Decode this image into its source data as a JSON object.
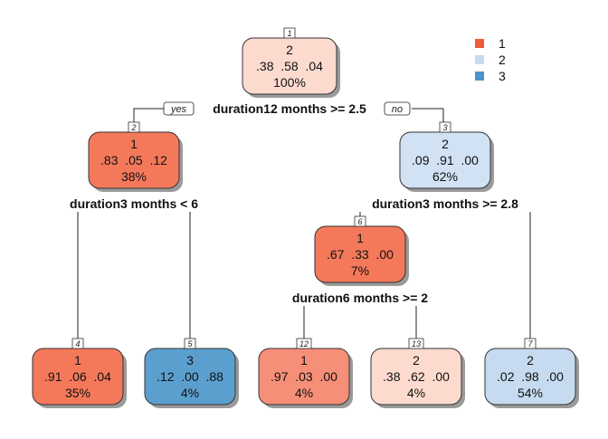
{
  "legend": [
    {
      "label": "1",
      "color": "#F05A3C"
    },
    {
      "label": "2",
      "color": "#C6DBEF"
    },
    {
      "label": "3",
      "color": "#4B96C8"
    }
  ],
  "branch_labels": {
    "yes": "yes",
    "no": "no"
  },
  "nodes": [
    {
      "id": "n1",
      "number": "1",
      "cls": "2",
      "probs": ".38  .58  .04",
      "pct": "100%",
      "fill": "#FDDACE"
    },
    {
      "id": "n2",
      "number": "2",
      "cls": "1",
      "probs": ".83  .05  .12",
      "pct": "38%",
      "fill": "#F4795B"
    },
    {
      "id": "n3",
      "number": "3",
      "cls": "2",
      "probs": ".09  .91  .00",
      "pct": "62%",
      "fill": "#D0E2F3"
    },
    {
      "id": "n4",
      "number": "4",
      "cls": "1",
      "probs": ".91  .06  .04",
      "pct": "35%",
      "fill": "#F4795B"
    },
    {
      "id": "n5",
      "number": "5",
      "cls": "3",
      "probs": ".12  .00  .88",
      "pct": "4%",
      "fill": "#5B9FCF"
    },
    {
      "id": "n6",
      "number": "6",
      "cls": "1",
      "probs": ".67  .33  .00",
      "pct": "7%",
      "fill": "#F4795B"
    },
    {
      "id": "n12",
      "number": "12",
      "cls": "1",
      "probs": ".97  .03  .00",
      "pct": "4%",
      "fill": "#F68F78"
    },
    {
      "id": "n13",
      "number": "13",
      "cls": "2",
      "probs": ".38  .62  .00",
      "pct": "4%",
      "fill": "#FDDACE"
    },
    {
      "id": "n7",
      "number": "7",
      "cls": "2",
      "probs": ".02  .98  .00",
      "pct": "54%",
      "fill": "#C6DBEF"
    }
  ],
  "splits": [
    {
      "id": "s1",
      "text": "duration12 months >= 2.5"
    },
    {
      "id": "s2",
      "text": "duration3 months < 6"
    },
    {
      "id": "s3",
      "text": "duration3 months >= 2.8"
    },
    {
      "id": "s6",
      "text": "duration6 months >= 2"
    }
  ]
}
